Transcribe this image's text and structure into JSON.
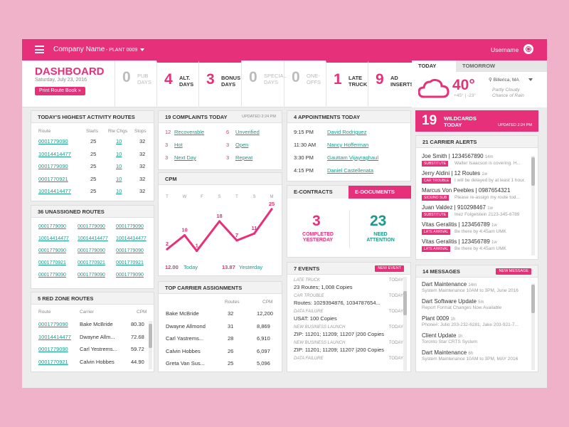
{
  "topbar": {
    "company": "Company Name",
    "plant": "- PLANT 0009",
    "username": "Username"
  },
  "dashboard": {
    "title": "DASHBOARD",
    "date": "Saturday, July 23, 2016",
    "print_button": "Print Route Book »"
  },
  "stats": [
    {
      "num": "0",
      "label1": "PUB",
      "label2": "DAYS",
      "active": false
    },
    {
      "num": "4",
      "label1": "ALT.",
      "label2": "DAYS",
      "active": true
    },
    {
      "num": "3",
      "label1": "BONUS",
      "label2": "DAYS",
      "active": true
    },
    {
      "num": "0",
      "label1": "SPECIAL",
      "label2": "DAYS",
      "active": false
    },
    {
      "num": "0",
      "label1": "ONE-",
      "label2": "OFFS",
      "active": false
    },
    {
      "num": "1",
      "label1": "LATE",
      "label2": "TRUCK",
      "active": true
    },
    {
      "num": "9",
      "label1": "AD",
      "label2": "INSERTS",
      "active": true
    }
  ],
  "weather": {
    "tab_today": "TODAY",
    "tab_tomorrow": "TOMORROW",
    "temp": "40°",
    "hi": "+45°",
    "lo": "-23°",
    "location": "Billerica, MA",
    "desc1": "Partly Cloudy",
    "desc2": "Chance of Rain",
    "icon": "cloud-icon"
  },
  "activity": {
    "title": "TODAY'S HIGHEST ACTIVITY ROUTES",
    "cols": [
      "Route",
      "Starts",
      "Rte Chgs",
      "Stops"
    ],
    "rows": [
      [
        "0001779090",
        "25",
        "10",
        "32"
      ],
      [
        "10014414477",
        "25",
        "10",
        "32"
      ],
      [
        "0001779090",
        "25",
        "10",
        "32"
      ],
      [
        "0001770921",
        "25",
        "10",
        "32"
      ],
      [
        "10014414477",
        "25",
        "10",
        "32"
      ]
    ]
  },
  "unassigned": {
    "title": "36 UNASSIGNED ROUTES",
    "rows": [
      [
        "0001779090",
        "0001779090",
        "0001779090"
      ],
      [
        "10014414477",
        "10014414477",
        "10014414477"
      ],
      [
        "0001779090",
        "0001779090",
        "0001779090"
      ],
      [
        "0001770921",
        "0001770921",
        "0001770921"
      ],
      [
        "0001779090",
        "0001779090",
        "0001779090"
      ]
    ]
  },
  "redzone": {
    "title": "5 RED ZONE ROUTES",
    "cols": [
      "Route",
      "Carrier",
      "CPM"
    ],
    "rows": [
      [
        "0001779090",
        "Bake McBride",
        "80.30"
      ],
      [
        "10014414477",
        "Dwayne Allm...",
        "72.68"
      ],
      [
        "0001779090",
        "Carl Yestrems...",
        "59.72"
      ],
      [
        "0001770921",
        "Calvin Hobbes",
        "44.90"
      ]
    ]
  },
  "complaints": {
    "title": "19 COMPLAINTS TODAY",
    "updated": "UPDATED 2:24 PM",
    "items": [
      {
        "n": "12",
        "label": "Recoverable"
      },
      {
        "n": "6",
        "label": "Unverified"
      },
      {
        "n": "3",
        "label": "Hot"
      },
      {
        "n": "3",
        "label": "Open"
      },
      {
        "n": "3",
        "label": "Next Day"
      },
      {
        "n": "3",
        "label": "Repeat"
      }
    ]
  },
  "cpm": {
    "title": "CPM",
    "today_val": "12.00",
    "today_label": "Today",
    "yesterday_val": "13.87",
    "yesterday_label": "Yesterday"
  },
  "chart_data": {
    "type": "line",
    "categories": [
      "T",
      "W",
      "F",
      "S",
      "T",
      "S",
      "M"
    ],
    "values": [
      2,
      10,
      1,
      18,
      7,
      11,
      25
    ],
    "x": [
      0,
      1,
      1.7,
      3,
      4,
      5,
      6
    ],
    "ylim": [
      0,
      27
    ]
  },
  "carriers": {
    "title": "TOP CARRIER ASSIGNMENTS",
    "cols": [
      "",
      "Routes",
      "CPM"
    ],
    "rows": [
      [
        "Bake McBride",
        "32",
        "12,200"
      ],
      [
        "Dwayne Allmond",
        "31",
        "8,869"
      ],
      [
        "Carl Yastrems...",
        "28",
        "6,910"
      ],
      [
        "Calvin Hobbes",
        "26",
        "6,097"
      ],
      [
        "Greta Van Sus...",
        "25",
        "5,096"
      ]
    ]
  },
  "appointments": {
    "title": "4 APPOINTMENTS TODAY",
    "rows": [
      [
        "9:15 PM",
        "David Rodriguez"
      ],
      [
        "11:30 AM",
        "Nancy Hofferman"
      ],
      [
        "3:30 PM",
        "Gauttam Vijayraghaul"
      ],
      [
        "4:15 PM",
        "Daniel Castellenata"
      ]
    ]
  },
  "contracts": {
    "tab1": "E-CONTRACTS",
    "tab2": "E-DOCUMENTS",
    "completed_num": "3",
    "completed_label1": "COMPLETED",
    "completed_label2": "YESTERDAY",
    "need_num": "23",
    "need_label1": "NEED",
    "need_label2": "ATTENTION"
  },
  "events": {
    "title": "7 EVENTS",
    "button": "NEW EVENT",
    "items": [
      {
        "type": "LATE TRUCK",
        "day": "TODAY",
        "text": "23 Routes; 1,008 Copies"
      },
      {
        "type": "CAR TROUBLE",
        "day": "TODAY",
        "text": "Routes: 1029394876, 1034787654..."
      },
      {
        "type": "DATA FAILURE",
        "day": "TODAY",
        "text": "USAT: 100 Copies"
      },
      {
        "type": "NEW BUSINESS LAUNCH",
        "day": "TODAY",
        "text": "ZIP: 11201; 11209; 11207 |200 Copies"
      },
      {
        "type": "NEW BUSINESS LAUNCH",
        "day": "TODAY",
        "text": "ZIP: 11201; 11209; 11207 |200 Copies"
      },
      {
        "type": "DATA FAILURE",
        "day": "TODAY",
        "text": ""
      }
    ]
  },
  "wildcards": {
    "num": "19",
    "label1": "WILDCARDS",
    "label2": "TODAY",
    "updated": "UPDATED 2:24 PM"
  },
  "alerts": {
    "title": "21 CARRIER ALERTS",
    "items": [
      {
        "name": "Joe Smith | 1234567890",
        "time": "14m",
        "tag": "SUBSTITUTE",
        "note": "Walter Isaacson is covering. H..."
      },
      {
        "name": "Jerry Aldini | 12 Routes",
        "time": "1w",
        "tag": "CAR TROUBLE",
        "note": "I will be delayed by at least 1 hour."
      },
      {
        "name": "Marcus Von Peebles | 0987654321",
        "time": "",
        "tag": "SICK/NO SUB",
        "note": "Please re-assign my route tod..."
      },
      {
        "name": "Juan Valdez | 910298467",
        "time": "1w",
        "tag": "SUBSTITUTE",
        "note": "Inez Folgelstein 2123-345-6789"
      },
      {
        "name": "Vitas Geralitis | 123456789",
        "time": "1w",
        "tag": "LATE ARRIVAL",
        "note": "Be there by 4:45am UMK"
      },
      {
        "name": "Vitas Geralitis | 123456789",
        "time": "1w",
        "tag": "LATE ARRIVAL",
        "note": "Be there by 4:45am UMK"
      }
    ]
  },
  "messages": {
    "title": "14 MESSAGES",
    "button": "NEW MESSAGE",
    "items": [
      {
        "title": "Dart Maintenance",
        "time": "14m",
        "sub": "System Maintenance 10AM to 3PM, June 2016"
      },
      {
        "title": "Dart Software Update",
        "time": "5m",
        "sub": "Report Format Changes Now Available"
      },
      {
        "title": "Plant 0009",
        "time": "1h",
        "sub": "Phone#: Julio 203-232-6281; Jake 203-921-7..."
      },
      {
        "title": "Client Update",
        "time": "1h",
        "sub": "Toronto Star CRTS System"
      },
      {
        "title": "Dart Maintenance",
        "time": "6h",
        "sub": "System Maintenance 10AM to 3PM, MAY 2016"
      }
    ]
  }
}
